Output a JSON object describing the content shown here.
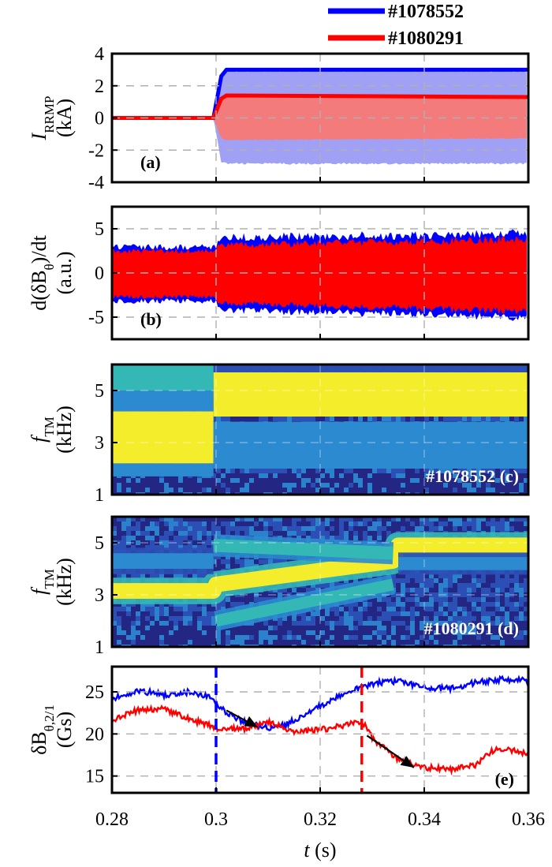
{
  "legend": [
    {
      "name": "#1078552",
      "color": "#0000ff"
    },
    {
      "name": "#1080291",
      "color": "#ff0000"
    }
  ],
  "x_axis": {
    "label_var": "t",
    "label_unit": " (s)",
    "ticks": [
      "0.28",
      "0.3",
      "0.32",
      "0.34",
      "0.36"
    ],
    "range": [
      0.28,
      0.36
    ],
    "grid": true
  },
  "chart_data": [
    {
      "panel": "(a)",
      "type": "area",
      "ylabel_main": "I",
      "ylabel_sub": "RRMP",
      "ylabel_unit": "(kA)",
      "ylim": [
        -4,
        4
      ],
      "yticks": [
        "4",
        "2",
        "0",
        "-2",
        "-4"
      ],
      "series": [
        {
          "name": "#1078552",
          "color": "#0000ff",
          "fill": "#a0a0f5",
          "x": [
            0.28,
            0.2995,
            0.301,
            0.302,
            0.36
          ],
          "upper": [
            0,
            0,
            2.6,
            3.0,
            3.0
          ],
          "lower": [
            0,
            0,
            -2.8,
            -2.9,
            -2.9
          ]
        },
        {
          "name": "#1080291",
          "color": "#ff0000",
          "fill": "#f37b7b",
          "x": [
            0.28,
            0.2995,
            0.301,
            0.302,
            0.36
          ],
          "upper": [
            0,
            0,
            1.2,
            1.4,
            1.3
          ],
          "lower": [
            0,
            0,
            -1.3,
            -1.4,
            -1.3
          ]
        }
      ]
    },
    {
      "panel": "(b)",
      "type": "area",
      "ylabel_main": "d(δB",
      "ylabel_sub": "θ",
      "ylabel_after": ")/dt",
      "ylabel_unit": "(a.u.)",
      "ylim": [
        -7.5,
        7.5
      ],
      "yticks": [
        "5",
        "0",
        "-5"
      ],
      "series": [
        {
          "name": "#1078552",
          "color": "#0000ff",
          "x": [
            0.28,
            0.3,
            0.3005,
            0.36
          ],
          "upper": [
            3.3,
            3.3,
            4.5,
            5.0
          ],
          "lower": [
            -3.5,
            -3.5,
            -4.6,
            -5.5
          ]
        },
        {
          "name": "#1080291",
          "color": "#ff0000",
          "x": [
            0.28,
            0.3,
            0.3005,
            0.36
          ],
          "upper": [
            2.8,
            2.8,
            3.5,
            4.3
          ],
          "lower": [
            -3.0,
            -3.0,
            -3.7,
            -4.8
          ]
        }
      ]
    },
    {
      "panel": "(c)",
      "type": "heatmap",
      "shot_label": "#1078552",
      "panel_label": "(c)",
      "ylabel_main": "f",
      "ylabel_sub": "TM",
      "ylabel_unit": "(kHz)",
      "ylim": [
        1,
        6
      ],
      "yticks": [
        "5",
        "3",
        "1"
      ],
      "colormap": [
        "#22207a",
        "#2c4fb5",
        "#2b8ad0",
        "#34b8b6",
        "#f4ed2b"
      ],
      "bands": [
        {
          "x": [
            0.28,
            0.2995
          ],
          "y": [
            2.2,
            4.2
          ],
          "level": 4
        },
        {
          "x": [
            0.2995,
            0.36
          ],
          "y": [
            4.0,
            5.7
          ],
          "level": 4
        },
        {
          "x": [
            0.28,
            0.2995
          ],
          "y": [
            4.2,
            5.0
          ],
          "level": 2
        },
        {
          "x": [
            0.28,
            0.2995
          ],
          "y": [
            5.0,
            6.0
          ],
          "level": 3
        },
        {
          "x": [
            0.28,
            0.2995
          ],
          "y": [
            1.7,
            2.2
          ],
          "level": 2
        },
        {
          "x": [
            0.2995,
            0.36
          ],
          "y": [
            2.0,
            3.8
          ],
          "level": 2
        },
        {
          "x": [
            0.2995,
            0.36
          ],
          "y": [
            5.7,
            6.0
          ],
          "level": 1
        }
      ]
    },
    {
      "panel": "(d)",
      "type": "heatmap",
      "shot_label": "#1080291",
      "panel_label": "(d)",
      "ylabel_main": "f",
      "ylabel_sub": "TM",
      "ylabel_unit": "(kHz)",
      "ylim": [
        1,
        6
      ],
      "yticks": [
        "5",
        "3",
        "1"
      ],
      "colormap": [
        "#22207a",
        "#2c4fb5",
        "#2b8ad0",
        "#34b8b6",
        "#f4ed2b"
      ],
      "lines": [
        {
          "x": [
            0.28,
            0.2995,
            0.3,
            0.334,
            0.335,
            0.36
          ],
          "y": [
            3.15,
            3.15,
            3.4,
            4.3,
            4.9,
            4.9
          ],
          "level": 4,
          "width": 0.6
        },
        {
          "x": [
            0.2995,
            0.334
          ],
          "y": [
            4.9,
            4.6
          ],
          "level": 3,
          "width": 0.5
        },
        {
          "x": [
            0.3,
            0.334
          ],
          "y": [
            2.0,
            3.4
          ],
          "level": 3,
          "width": 0.45
        },
        {
          "x": [
            0.28,
            0.2995
          ],
          "y": [
            4.3,
            4.3
          ],
          "level": 2,
          "width": 0.6
        },
        {
          "x": [
            0.335,
            0.36
          ],
          "y": [
            4.2,
            4.2
          ],
          "level": 2,
          "width": 0.5
        }
      ]
    },
    {
      "panel": "(e)",
      "type": "line",
      "panel_label": "(e)",
      "ylabel_main": "δB",
      "ylabel_sub": "θ,2/1",
      "ylabel_unit": "(Gs)",
      "ylim": [
        13,
        28
      ],
      "yticks": [
        "25",
        "20",
        "15"
      ],
      "vlines": [
        {
          "x": 0.3,
          "color": "#0000ff"
        },
        {
          "x": 0.328,
          "color": "#ff0000"
        }
      ],
      "arrows": [
        {
          "from": [
            0.302,
            22.8
          ],
          "to": [
            0.308,
            20.8
          ]
        },
        {
          "from": [
            0.329,
            19.8
          ],
          "to": [
            0.338,
            16.0
          ]
        }
      ],
      "series": [
        {
          "name": "#1078552",
          "color": "#0000ff",
          "x": [
            0.28,
            0.285,
            0.29,
            0.295,
            0.299,
            0.301,
            0.305,
            0.31,
            0.313,
            0.32,
            0.325,
            0.33,
            0.335,
            0.34,
            0.345,
            0.35,
            0.355,
            0.36
          ],
          "y": [
            24.2,
            25.2,
            24.6,
            25.0,
            24.4,
            23.0,
            21.5,
            20.7,
            21.0,
            23.3,
            25.0,
            26.0,
            26.3,
            25.5,
            25.4,
            26.1,
            26.5,
            26.3
          ]
        },
        {
          "name": "#1080291",
          "color": "#ff0000",
          "x": [
            0.28,
            0.285,
            0.29,
            0.295,
            0.3,
            0.305,
            0.31,
            0.315,
            0.32,
            0.325,
            0.328,
            0.33,
            0.335,
            0.34,
            0.345,
            0.35,
            0.353,
            0.356,
            0.36
          ],
          "y": [
            21.7,
            22.8,
            23.0,
            21.8,
            20.7,
            20.5,
            21.4,
            20.2,
            20.5,
            21.0,
            21.6,
            19.5,
            17.0,
            16.0,
            15.8,
            16.3,
            18.0,
            18.2,
            17.5
          ]
        }
      ]
    }
  ]
}
